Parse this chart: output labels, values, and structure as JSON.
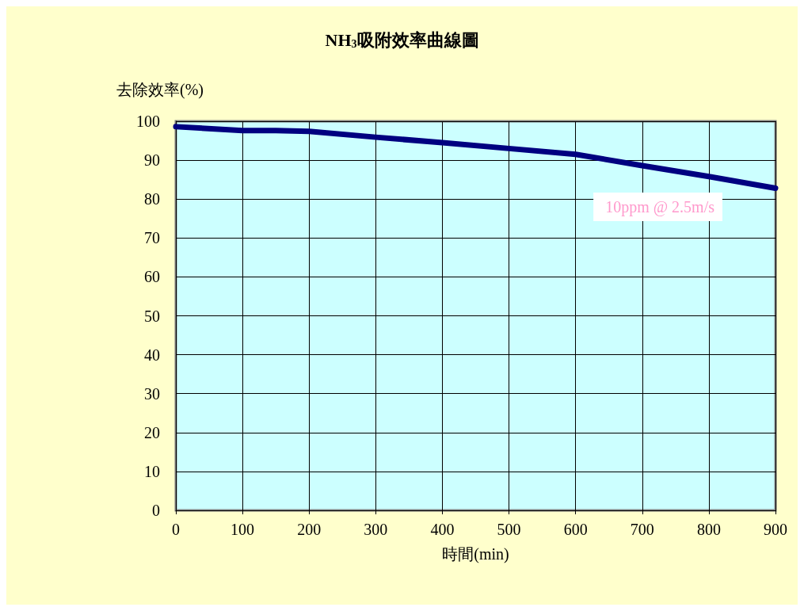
{
  "chart_data": {
    "type": "line",
    "title": "NH$_{3}$吸附效率曲線圖",
    "xlabel": "時間(min)",
    "ylabel": "去除效率(%)",
    "x": [
      0,
      100,
      150,
      200,
      300,
      400,
      500,
      600,
      700,
      800,
      900
    ],
    "series": [
      {
        "name": "10ppm @ 2.5m/s",
        "color": "#000080",
        "values": [
          98.6,
          97.6,
          97.6,
          97.4,
          95.9,
          94.5,
          93,
          91.5,
          88.6,
          85.8,
          82.8
        ]
      }
    ],
    "xlim": [
      0,
      900
    ],
    "xticks": [
      0,
      100,
      200,
      300,
      400,
      500,
      600,
      700,
      800,
      900
    ],
    "ylim": [
      0,
      100
    ],
    "yticks": [
      0,
      10,
      20,
      30,
      40,
      50,
      60,
      70,
      80,
      90,
      100
    ],
    "grid": true,
    "legend": "right",
    "marker": "none",
    "line_style": "solid"
  }
}
